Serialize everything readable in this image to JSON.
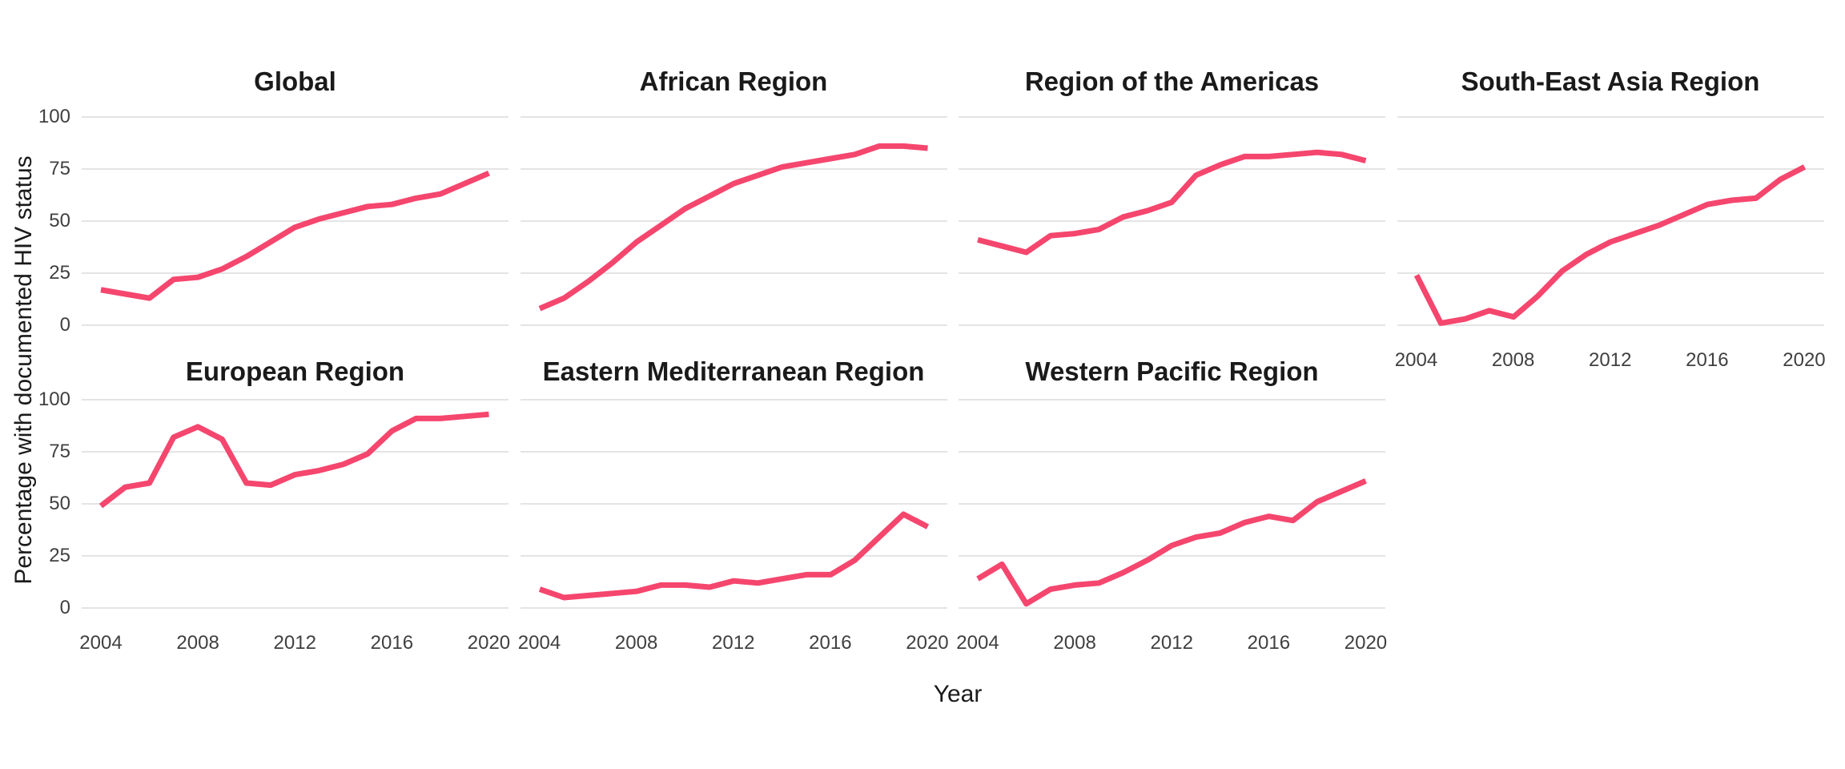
{
  "figure": {
    "y_axis_label": "Percentage with documented HIV status",
    "x_axis_label": "Year"
  },
  "colors": {
    "line": "#F5466E",
    "grid": "#E0E0E0",
    "tick_text": "#404040",
    "title_text": "#1A1A1A",
    "background": "#FFFFFF"
  },
  "chart_data": {
    "type": "line",
    "x": [
      2004,
      2005,
      2006,
      2007,
      2008,
      2009,
      2010,
      2011,
      2012,
      2013,
      2014,
      2015,
      2016,
      2017,
      2018,
      2019,
      2020
    ],
    "xlabel": "Year",
    "ylabel": "Percentage with documented HIV status",
    "ylim": [
      0,
      100
    ],
    "y_ticks": [
      100,
      75,
      50,
      25,
      0
    ],
    "x_tick_years": [
      2004,
      2008,
      2012,
      2016,
      2020
    ],
    "grid": "horizontal-only",
    "legend": "none",
    "layout": "facet-grid 2 rows x 4 columns, last cell of bottom row empty",
    "facets": [
      {
        "title": "Global",
        "values": [
          17,
          15,
          13,
          22,
          23,
          27,
          33,
          40,
          47,
          51,
          54,
          57,
          58,
          61,
          63,
          68,
          73
        ]
      },
      {
        "title": "African Region",
        "values": [
          8,
          13,
          21,
          30,
          40,
          48,
          56,
          62,
          68,
          72,
          76,
          78,
          80,
          82,
          86,
          86,
          85
        ]
      },
      {
        "title": "Region of the Americas",
        "values": [
          41,
          38,
          35,
          43,
          44,
          46,
          52,
          55,
          59,
          72,
          77,
          81,
          81,
          82,
          83,
          82,
          79
        ]
      },
      {
        "title": "South-East Asia Region",
        "values": [
          24,
          1,
          3,
          7,
          4,
          14,
          26,
          34,
          40,
          44,
          48,
          53,
          58,
          60,
          61,
          70,
          76
        ]
      },
      {
        "title": "European Region",
        "values": [
          49,
          58,
          60,
          82,
          87,
          81,
          60,
          59,
          64,
          66,
          69,
          74,
          85,
          91,
          91,
          92,
          93
        ]
      },
      {
        "title": "Eastern Mediterranean Region",
        "values": [
          9,
          5,
          6,
          7,
          8,
          11,
          11,
          10,
          13,
          12,
          14,
          16,
          16,
          23,
          34,
          45,
          39
        ]
      },
      {
        "title": "Western Pacific Region",
        "values": [
          14,
          21,
          2,
          9,
          11,
          12,
          17,
          23,
          30,
          34,
          36,
          41,
          44,
          42,
          51,
          56,
          61
        ]
      }
    ]
  }
}
